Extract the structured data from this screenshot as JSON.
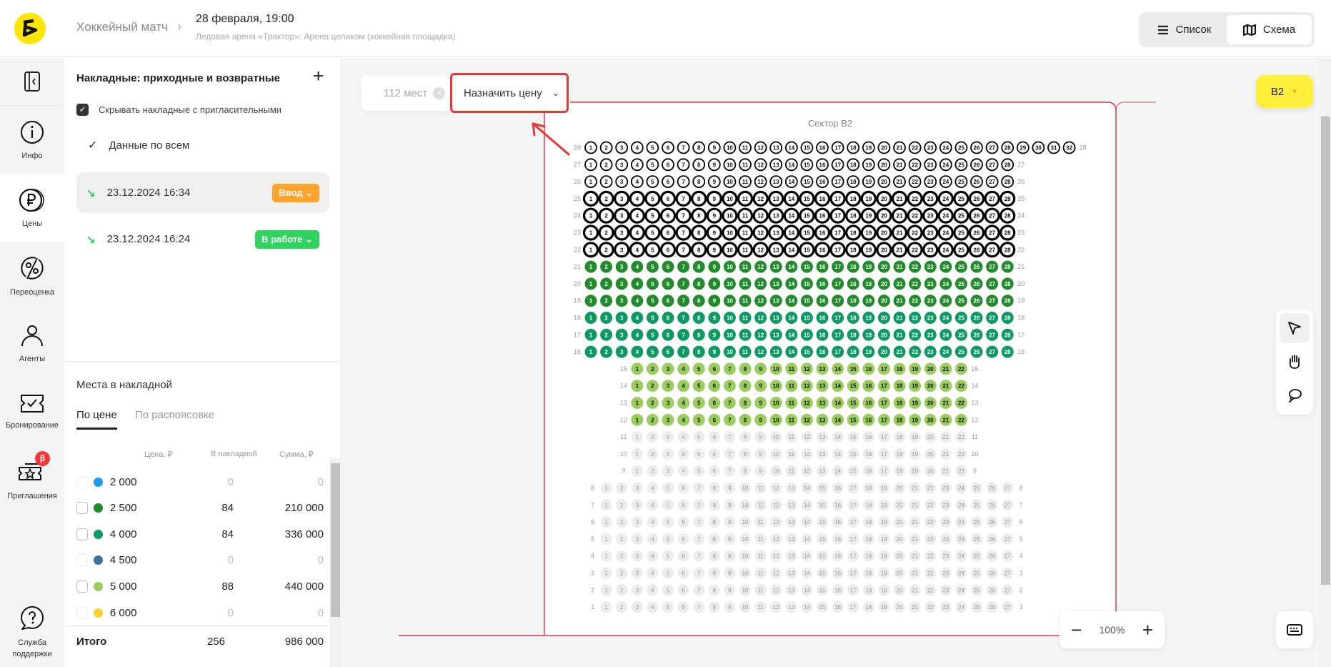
{
  "header": {
    "breadcrumb_event": "Хоккейный матч",
    "event_date": "28 февраля, 19:00",
    "venue": "Ледовая арена «Трактор»: Арена целиком (хоккейная площадка)",
    "view_list": "Список",
    "view_scheme": "Схема",
    "active_view": "Схема"
  },
  "sidebar": {
    "items": [
      {
        "label": "Инфо",
        "icon": "info-icon"
      },
      {
        "label": "Цены",
        "icon": "ruble-icon",
        "active": true
      },
      {
        "label": "Переоценка",
        "icon": "percent-icon"
      },
      {
        "label": "Агенты",
        "icon": "person-icon"
      },
      {
        "label": "Бронирование",
        "icon": "ticket-check-icon"
      },
      {
        "label": "Приглашения",
        "icon": "ticket-star-icon",
        "badge": "β"
      },
      {
        "label": "Служба поддержки",
        "icon": "help-chat-icon"
      }
    ]
  },
  "panel": {
    "title": "Накладные: приходные и возвратные",
    "hide_invites_label": "Скрывать накладные с пригласительными",
    "hide_invites_checked": true,
    "all_data_label": "Данные по всем",
    "invoices": [
      {
        "datetime": "23.12.2024 16:34",
        "status": "Ввод",
        "status_color": "#ffa32b",
        "selected": true
      },
      {
        "datetime": "23.12.2024 16:24",
        "status": "В работе",
        "status_color": "#2fd35d",
        "selected": false
      }
    ],
    "places_title": "Места в накладной",
    "tabs": [
      "По цене",
      "По распоясовке"
    ],
    "table": {
      "headers": [
        "Цена, ₽",
        "В накладной",
        "Сумма, ₽"
      ],
      "rows": [
        {
          "price": "2 000",
          "color": "#1a9ff0",
          "count": "0",
          "sum": "0"
        },
        {
          "price": "2 500",
          "color": "#228b2c",
          "count": "84",
          "sum": "210 000"
        },
        {
          "price": "4 000",
          "color": "#0c9a62",
          "count": "84",
          "sum": "336 000"
        },
        {
          "price": "4 500",
          "color": "#40729a",
          "count": "0",
          "sum": "0"
        },
        {
          "price": "5 000",
          "color": "#9acd5e",
          "count": "88",
          "sum": "440 000"
        },
        {
          "price": "6 000",
          "color": "#fcd02c",
          "count": "0",
          "sum": "0"
        }
      ],
      "total_label": "Итого",
      "total_count": "256",
      "total_sum": "986 000"
    }
  },
  "map": {
    "selected_count": "112 мест",
    "assign_price": "Назначить цену",
    "sector_title": "Сектор B2",
    "sector_button": "B2",
    "zoom": "100%",
    "status_colors": {
      "unavailable": "#ececec",
      "selected": "#ffffff",
      "unpriced": "#ffffff",
      "2500": "#228b2c",
      "4000": "#0c9a62",
      "5000": "#9acd5e"
    },
    "rows": [
      {
        "row": 28,
        "seats": 32,
        "status": "unpriced"
      },
      {
        "row": 27,
        "seats": 28,
        "status": "unpriced"
      },
      {
        "row": 26,
        "seats": 28,
        "status": "unpriced"
      },
      {
        "row": 25,
        "seats": 28,
        "status": "selected"
      },
      {
        "row": 24,
        "seats": 28,
        "status": "selected"
      },
      {
        "row": 23,
        "seats": 28,
        "status": "selected"
      },
      {
        "row": 22,
        "seats": 28,
        "status": "selected"
      },
      {
        "row": 21,
        "seats": 28,
        "status": "2500"
      },
      {
        "row": 20,
        "seats": 28,
        "status": "2500"
      },
      {
        "row": 19,
        "seats": 28,
        "status": "2500"
      },
      {
        "row": 18,
        "seats": 28,
        "status": "4000"
      },
      {
        "row": 17,
        "seats": 28,
        "status": "4000"
      },
      {
        "row": 16,
        "seats": 28,
        "status": "4000"
      },
      {
        "row": 15,
        "seats": 22,
        "status": "5000"
      },
      {
        "row": 14,
        "seats": 22,
        "status": "5000"
      },
      {
        "row": 13,
        "seats": 22,
        "status": "5000"
      },
      {
        "row": 12,
        "seats": 22,
        "status": "5000"
      },
      {
        "row": 11,
        "seats": 22,
        "status": "unavailable"
      },
      {
        "row": 10,
        "seats": 22,
        "status": "unavailable"
      },
      {
        "row": 9,
        "seats": 22,
        "status": "unavailable"
      },
      {
        "row": 8,
        "seats": 27,
        "status": "unavailable"
      },
      {
        "row": 7,
        "seats": 27,
        "status": "unavailable"
      },
      {
        "row": 6,
        "seats": 27,
        "status": "unavailable"
      },
      {
        "row": 5,
        "seats": 27,
        "status": "unavailable"
      },
      {
        "row": 4,
        "seats": 27,
        "status": "unavailable"
      },
      {
        "row": 3,
        "seats": 27,
        "status": "unavailable"
      },
      {
        "row": 2,
        "seats": 27,
        "status": "unavailable"
      },
      {
        "row": 1,
        "seats": 27,
        "status": "unavailable"
      }
    ]
  }
}
